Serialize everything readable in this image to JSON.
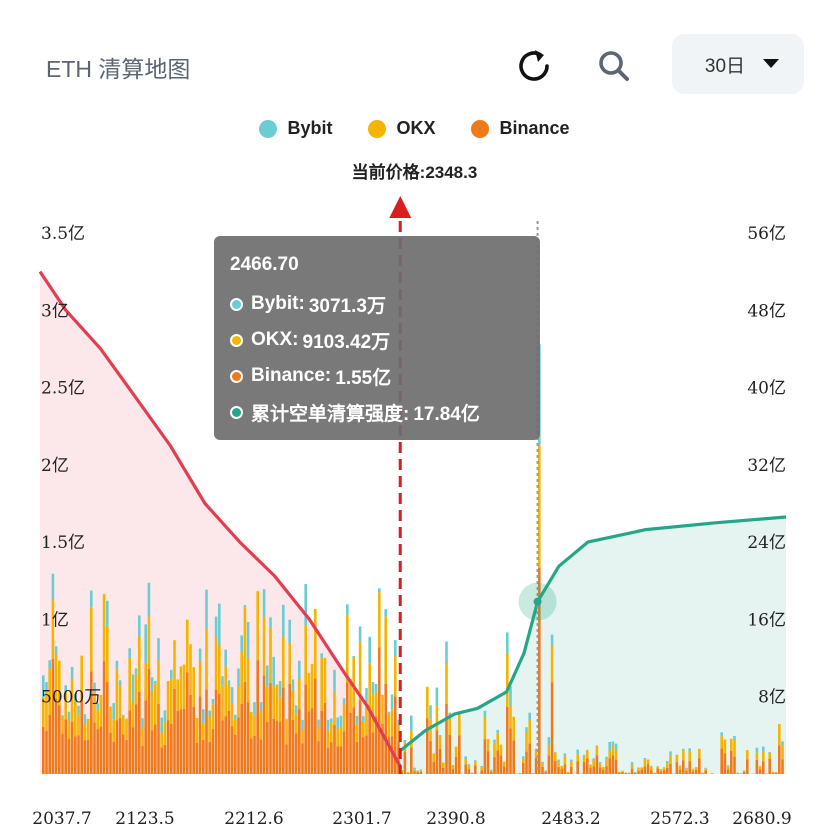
{
  "header": {
    "title": "ETH 清算地图",
    "range_value": "30日",
    "icons": [
      "refresh-icon",
      "search-icon",
      "caret-down-icon"
    ]
  },
  "legend": [
    {
      "label": "Bybit",
      "color": "#6cccd3"
    },
    {
      "label": "OKX",
      "color": "#f4b400"
    },
    {
      "label": "Binance",
      "color": "#f07a1a"
    }
  ],
  "current_price_label": "当前价格:2348.3",
  "tooltip": {
    "title": "2466.70",
    "rows": [
      {
        "label": "Bybit:",
        "value": "3071.3万",
        "color": "#6cccd3"
      },
      {
        "label": "OKX:",
        "value": "9103.42万",
        "color": "#f4b400"
      },
      {
        "label": "Binance:",
        "value": "1.55亿",
        "color": "#f07a1a"
      },
      {
        "label": "累计空单清算强度:",
        "value": "17.84亿",
        "color": "#26a688"
      }
    ]
  },
  "colors": {
    "bybit": "#6cccd3",
    "okx": "#f4b400",
    "binance": "#f07a1a",
    "long_line": "#e23d51",
    "long_fill": "#fbe3e6",
    "short_line": "#26a688",
    "short_fill": "#e2f3ef",
    "current_price_marker": "#d81e1e"
  },
  "chart_data": {
    "type": "bar",
    "x_tick_labels": [
      "2037.7",
      "2123.5",
      "2212.6",
      "2301.7",
      "2390.8",
      "2483.2",
      "2572.3",
      "2680.9"
    ],
    "x_range": [
      2037.7,
      2680.9
    ],
    "left_y_tick_labels": [
      "5000万",
      "1亿",
      "1.5亿",
      "2亿",
      "2.5亿",
      "3亿",
      "3.5亿"
    ],
    "left_y_range_yi": [
      0,
      3.5
    ],
    "right_y_tick_labels": [
      "8亿",
      "16亿",
      "24亿",
      "32亿",
      "40亿",
      "48亿",
      "56亿"
    ],
    "right_y_range_yi": [
      0,
      56
    ],
    "current_price": 2348.3,
    "hover_price": 2466.7,
    "series": [
      {
        "name": "Bybit",
        "kind": "stacked_bar"
      },
      {
        "name": "OKX",
        "kind": "stacked_bar"
      },
      {
        "name": "Binance",
        "kind": "stacked_bar"
      },
      {
        "name": "累计空单清算强度",
        "kind": "cumulative_line",
        "axis": "right",
        "points": [
          [
            2348.3,
            2.4
          ],
          [
            2370,
            4.5
          ],
          [
            2395,
            6.2
          ],
          [
            2415,
            6.8
          ],
          [
            2440,
            8.5
          ],
          [
            2455,
            12.5
          ],
          [
            2466.7,
            17.84
          ],
          [
            2485,
            21.5
          ],
          [
            2510,
            24.0
          ],
          [
            2560,
            25.3
          ],
          [
            2620,
            26.0
          ],
          [
            2680.9,
            26.6
          ]
        ]
      },
      {
        "kind": "cumulative_line",
        "axis": "right",
        "points": [
          [
            2037.7,
            52.0
          ],
          [
            2060,
            48.0
          ],
          [
            2090,
            44.0
          ],
          [
            2120,
            39.0
          ],
          [
            2150,
            34.0
          ],
          [
            2180,
            28.0
          ],
          [
            2210,
            24.0
          ],
          [
            2240,
            20.5
          ],
          [
            2270,
            16.0
          ],
          [
            2300,
            10.5
          ],
          [
            2320,
            7.0
          ],
          [
            2348.3,
            0.8
          ]
        ]
      }
    ]
  }
}
